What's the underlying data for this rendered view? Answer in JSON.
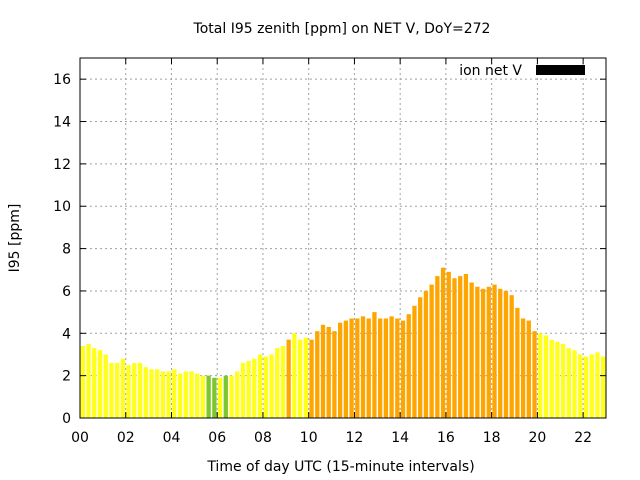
{
  "chart_data": {
    "type": "bar",
    "title": "Total I95 zenith [ppm] on NET V, DoY=272",
    "xlabel": "Time of day UTC (15-minute intervals)",
    "ylabel": "I95 [ppm]",
    "legend": {
      "label": "ion net V",
      "color": "#000000",
      "placement": "top-right"
    },
    "grid": true,
    "xlim": [
      0,
      23
    ],
    "ylim": [
      0,
      17
    ],
    "x_step": 0.25,
    "x_ticks": [
      {
        "value": 0,
        "label": "00"
      },
      {
        "value": 2,
        "label": "02"
      },
      {
        "value": 4,
        "label": "04"
      },
      {
        "value": 6,
        "label": "06"
      },
      {
        "value": 8,
        "label": "08"
      },
      {
        "value": 10,
        "label": "10"
      },
      {
        "value": 12,
        "label": "12"
      },
      {
        "value": 14,
        "label": "14"
      },
      {
        "value": 16,
        "label": "16"
      },
      {
        "value": 18,
        "label": "18"
      },
      {
        "value": 20,
        "label": "20"
      },
      {
        "value": 22,
        "label": "22"
      }
    ],
    "y_ticks": [
      {
        "value": 0,
        "label": "0"
      },
      {
        "value": 2,
        "label": "2"
      },
      {
        "value": 4,
        "label": "4"
      },
      {
        "value": 6,
        "label": "6"
      },
      {
        "value": 8,
        "label": "8"
      },
      {
        "value": 10,
        "label": "10"
      },
      {
        "value": 12,
        "label": "12"
      },
      {
        "value": 14,
        "label": "14"
      },
      {
        "value": 16,
        "label": "16"
      }
    ],
    "level_colors": {
      "green": "#7cc62f",
      "yellow": "#ffff1a",
      "orange": "#ffa500"
    },
    "x": [
      0.0,
      0.25,
      0.5,
      0.75,
      1.0,
      1.25,
      1.5,
      1.75,
      2.0,
      2.25,
      2.5,
      2.75,
      3.0,
      3.25,
      3.5,
      3.75,
      4.0,
      4.25,
      4.5,
      4.75,
      5.0,
      5.25,
      5.5,
      5.75,
      6.0,
      6.25,
      6.5,
      6.75,
      7.0,
      7.25,
      7.5,
      7.75,
      8.0,
      8.25,
      8.5,
      8.75,
      9.0,
      9.25,
      9.5,
      9.75,
      10.0,
      10.25,
      10.5,
      10.75,
      11.0,
      11.25,
      11.5,
      11.75,
      12.0,
      12.25,
      12.5,
      12.75,
      13.0,
      13.25,
      13.5,
      13.75,
      14.0,
      14.25,
      14.5,
      14.75,
      15.0,
      15.25,
      15.5,
      15.75,
      16.0,
      16.25,
      16.5,
      16.75,
      17.0,
      17.25,
      17.5,
      17.75,
      18.0,
      18.25,
      18.5,
      18.75,
      19.0,
      19.25,
      19.5,
      19.75,
      20.0,
      20.25,
      20.5,
      20.75,
      21.0,
      21.25,
      21.5,
      21.75,
      22.0,
      22.25,
      22.5,
      22.75
    ],
    "values": [
      3.4,
      3.5,
      3.3,
      3.2,
      3.0,
      2.6,
      2.6,
      2.8,
      2.5,
      2.6,
      2.6,
      2.4,
      2.3,
      2.3,
      2.2,
      2.2,
      2.3,
      2.1,
      2.2,
      2.2,
      2.1,
      2.0,
      2.0,
      1.9,
      1.9,
      2.0,
      2.0,
      2.2,
      2.6,
      2.7,
      2.8,
      3.0,
      2.9,
      3.0,
      3.3,
      3.4,
      3.7,
      4.0,
      3.7,
      3.8,
      3.7,
      4.1,
      4.4,
      4.3,
      4.1,
      4.5,
      4.6,
      4.7,
      4.7,
      4.8,
      4.7,
      5.0,
      4.7,
      4.7,
      4.8,
      4.7,
      4.6,
      4.9,
      5.3,
      5.7,
      6.0,
      6.3,
      6.7,
      7.1,
      6.9,
      6.6,
      6.7,
      6.8,
      6.4,
      6.2,
      6.1,
      6.2,
      6.3,
      6.1,
      6.0,
      5.8,
      5.2,
      4.7,
      4.6,
      4.1,
      4.0,
      3.9,
      3.7,
      3.6,
      3.5,
      3.3,
      3.2,
      3.0,
      2.9,
      3.0,
      3.1,
      2.9
    ],
    "levels": [
      "yellow",
      "yellow",
      "yellow",
      "yellow",
      "yellow",
      "yellow",
      "yellow",
      "yellow",
      "yellow",
      "yellow",
      "yellow",
      "yellow",
      "yellow",
      "yellow",
      "yellow",
      "yellow",
      "yellow",
      "yellow",
      "yellow",
      "yellow",
      "yellow",
      "yellow",
      "green",
      "green",
      "yellow",
      "green",
      "yellow",
      "yellow",
      "yellow",
      "yellow",
      "yellow",
      "yellow",
      "yellow",
      "yellow",
      "yellow",
      "yellow",
      "orange",
      "yellow",
      "yellow",
      "yellow",
      "orange",
      "orange",
      "orange",
      "orange",
      "orange",
      "orange",
      "orange",
      "orange",
      "orange",
      "orange",
      "orange",
      "orange",
      "orange",
      "orange",
      "orange",
      "orange",
      "orange",
      "orange",
      "orange",
      "orange",
      "orange",
      "orange",
      "orange",
      "orange",
      "orange",
      "orange",
      "orange",
      "orange",
      "orange",
      "orange",
      "orange",
      "orange",
      "orange",
      "orange",
      "orange",
      "orange",
      "orange",
      "orange",
      "orange",
      "orange",
      "yellow",
      "yellow",
      "yellow",
      "yellow",
      "yellow",
      "yellow",
      "yellow",
      "yellow",
      "yellow",
      "yellow",
      "yellow",
      "yellow"
    ]
  }
}
